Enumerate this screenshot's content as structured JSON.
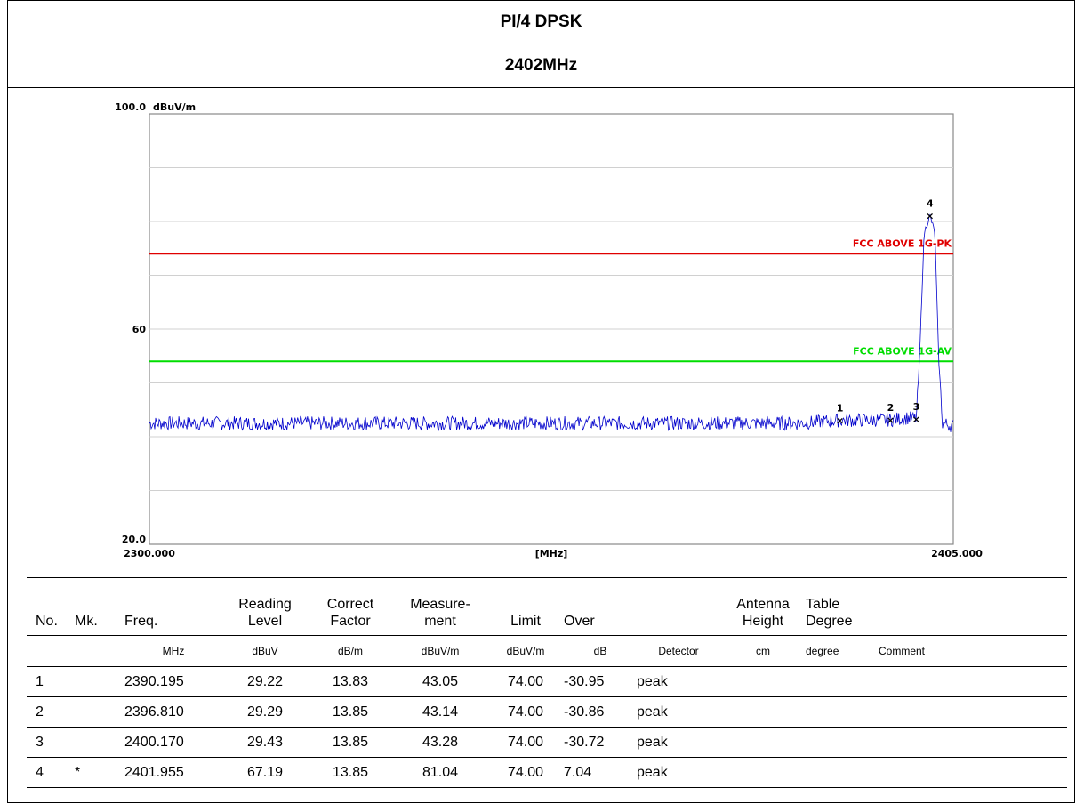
{
  "header": {
    "modulation": "PI/4 DPSK",
    "channel": "2402MHz"
  },
  "chart_data": {
    "type": "line",
    "x_unit_label": "[MHz]",
    "y_unit_label": "dBuV/m",
    "xlim": [
      2300.0,
      2405.0
    ],
    "ylim": [
      20.0,
      100.0
    ],
    "x_tick_labels": [
      "2300.000",
      "2405.000"
    ],
    "y_tick_labels": [
      "100.0",
      "60",
      "20.0"
    ],
    "grid": true,
    "limit_lines": [
      {
        "name": "FCC ABOVE 1G-PK",
        "value": 74.0,
        "color": "#e00000"
      },
      {
        "name": "FCC ABOVE 1G-AV",
        "value": 54.0,
        "color": "#00dd00"
      }
    ],
    "series": [
      {
        "color": "#0000cc",
        "noise_floor": 42.5,
        "x": [
          2300.0,
          2385.0,
          2390.195,
          2396.81,
          2399.0,
          2400.17,
          2400.6,
          2401.2,
          2401.955,
          2402.6,
          2403.1,
          2403.6,
          2405.0
        ],
        "y": [
          42.5,
          42.5,
          43.05,
          43.14,
          43.5,
          43.28,
          54.5,
          78.0,
          81.04,
          78.0,
          54.5,
          42.5,
          42.0
        ]
      }
    ],
    "markers": [
      {
        "label": "1",
        "x": 2390.195,
        "y": 43.05
      },
      {
        "label": "2",
        "x": 2396.81,
        "y": 43.14
      },
      {
        "label": "3",
        "x": 2400.17,
        "y": 43.28
      },
      {
        "label": "4",
        "x": 2401.955,
        "y": 81.04
      }
    ]
  },
  "table": {
    "headers": {
      "no": "No.",
      "mk": "Mk.",
      "freq": "Freq.",
      "reading_1": "Reading",
      "reading_2": "Level",
      "correct_1": "Correct",
      "correct_2": "Factor",
      "measure_1": "Measure-",
      "measure_2": "ment",
      "limit": "Limit",
      "over": "Over",
      "antenna_1": "Antenna",
      "antenna_2": "Height",
      "table_1": "Table",
      "table_2": "Degree"
    },
    "units": {
      "freq": "MHz",
      "reading": "dBuV",
      "correct": "dB/m",
      "measure": "dBuV/m",
      "limit": "dBuV/m",
      "over": "dB",
      "detector": "Detector",
      "antenna": "cm",
      "table": "degree",
      "comment": "Comment"
    },
    "rows": [
      {
        "no": "1",
        "mk": "",
        "freq": "2390.195",
        "reading": "29.22",
        "correct": "13.83",
        "measure": "43.05",
        "limit": "74.00",
        "over": "-30.95",
        "detector": "peak"
      },
      {
        "no": "2",
        "mk": "",
        "freq": "2396.810",
        "reading": "29.29",
        "correct": "13.85",
        "measure": "43.14",
        "limit": "74.00",
        "over": "-30.86",
        "detector": "peak"
      },
      {
        "no": "3",
        "mk": "",
        "freq": "2400.170",
        "reading": "29.43",
        "correct": "13.85",
        "measure": "43.28",
        "limit": "74.00",
        "over": "-30.72",
        "detector": "peak"
      },
      {
        "no": "4",
        "mk": "*",
        "freq": "2401.955",
        "reading": "67.19",
        "correct": "13.85",
        "measure": "81.04",
        "limit": "74.00",
        "over": "7.04",
        "detector": "peak"
      }
    ]
  }
}
